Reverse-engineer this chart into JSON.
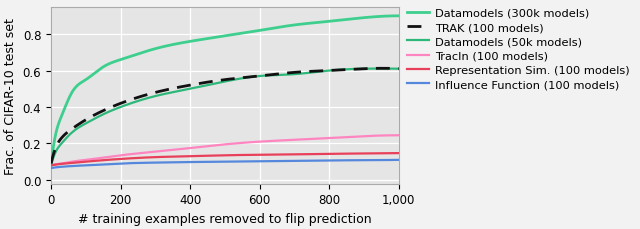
{
  "xlabel": "# training examples removed to flip prediction",
  "ylabel": "Frac. of CIFAR-10 test set",
  "xlim": [
    0,
    1000
  ],
  "ylim": [
    -0.02,
    0.95
  ],
  "yticks": [
    0,
    0.2,
    0.4,
    0.6,
    0.8
  ],
  "xticks": [
    0,
    200,
    400,
    600,
    800,
    1000
  ],
  "plot_bg": "#e5e5e5",
  "fig_bg": "#f2f2f2",
  "series": [
    {
      "label": "Datamodels (300k models)",
      "color": "#3ecf8e",
      "linewidth": 2.0,
      "linestyle": "solid",
      "x": [
        0,
        10,
        30,
        60,
        100,
        150,
        200,
        300,
        400,
        500,
        600,
        700,
        800,
        900,
        1000
      ],
      "y": [
        0.08,
        0.22,
        0.35,
        0.48,
        0.55,
        0.62,
        0.66,
        0.72,
        0.76,
        0.79,
        0.82,
        0.85,
        0.87,
        0.89,
        0.9
      ]
    },
    {
      "label": "TRAK (100 models)",
      "color": "#111111",
      "linewidth": 2.0,
      "linestyle": "dashed",
      "x": [
        0,
        10,
        30,
        60,
        100,
        150,
        200,
        300,
        400,
        500,
        600,
        700,
        800,
        900,
        1000
      ],
      "y": [
        0.09,
        0.16,
        0.23,
        0.28,
        0.33,
        0.38,
        0.42,
        0.48,
        0.52,
        0.55,
        0.57,
        0.59,
        0.6,
        0.61,
        0.61
      ]
    },
    {
      "label": "Datamodels (50k models)",
      "color": "#2db87a",
      "linewidth": 1.6,
      "linestyle": "solid",
      "x": [
        0,
        10,
        30,
        60,
        100,
        150,
        200,
        300,
        400,
        500,
        600,
        700,
        800,
        900,
        1000
      ],
      "y": [
        0.08,
        0.14,
        0.2,
        0.26,
        0.31,
        0.36,
        0.4,
        0.46,
        0.5,
        0.54,
        0.57,
        0.58,
        0.6,
        0.61,
        0.61
      ]
    },
    {
      "label": "TracIn (100 models)",
      "color": "#ff85c0",
      "linewidth": 1.6,
      "linestyle": "solid",
      "x": [
        0,
        10,
        30,
        60,
        100,
        200,
        300,
        400,
        500,
        600,
        700,
        800,
        900,
        1000
      ],
      "y": [
        0.08,
        0.085,
        0.09,
        0.1,
        0.11,
        0.135,
        0.155,
        0.175,
        0.195,
        0.21,
        0.22,
        0.23,
        0.24,
        0.245
      ]
    },
    {
      "label": "Representation Sim. (100 models)",
      "color": "#e8405a",
      "linewidth": 1.6,
      "linestyle": "solid",
      "x": [
        0,
        10,
        30,
        60,
        100,
        200,
        300,
        400,
        500,
        600,
        700,
        800,
        900,
        1000
      ],
      "y": [
        0.08,
        0.083,
        0.088,
        0.093,
        0.1,
        0.115,
        0.125,
        0.13,
        0.135,
        0.138,
        0.14,
        0.143,
        0.145,
        0.147
      ]
    },
    {
      "label": "Influence Function (100 models)",
      "color": "#5588dd",
      "linewidth": 1.6,
      "linestyle": "solid",
      "x": [
        0,
        10,
        30,
        60,
        100,
        200,
        300,
        400,
        500,
        600,
        700,
        800,
        900,
        1000
      ],
      "y": [
        0.065,
        0.068,
        0.072,
        0.076,
        0.08,
        0.09,
        0.095,
        0.098,
        0.1,
        0.103,
        0.105,
        0.107,
        0.108,
        0.11
      ]
    }
  ],
  "figsize": [
    6.4,
    2.3
  ],
  "dpi": 100,
  "legend_fontsize": 8.2,
  "axis_fontsize": 9.0,
  "tick_fontsize": 8.5
}
